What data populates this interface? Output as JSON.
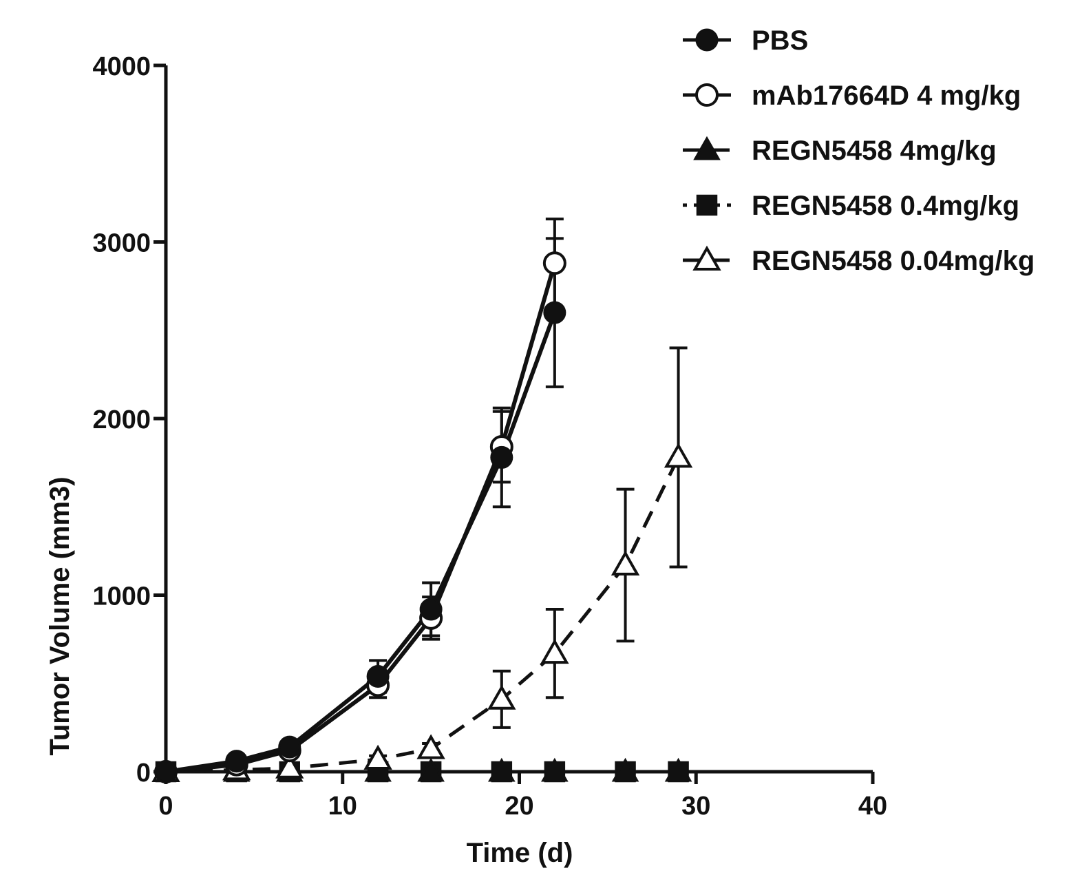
{
  "chart_data": {
    "type": "line",
    "title": "",
    "xlabel": "Time (d)",
    "ylabel": "Tumor Volume (mm3)",
    "xlim": [
      0,
      40
    ],
    "ylim": [
      0,
      4000
    ],
    "x_ticks": [
      "0",
      "10",
      "20",
      "30",
      "40"
    ],
    "y_ticks": [
      "0",
      "1000",
      "2000",
      "3000",
      "4000"
    ],
    "grid": false,
    "legend_position": "top-right",
    "series": [
      {
        "name": "PBS",
        "marker": "filled-circle",
        "line": "solid",
        "x": [
          0,
          4,
          7,
          12,
          15,
          19,
          22
        ],
        "y": [
          0,
          60,
          140,
          540,
          920,
          1780,
          2600
        ],
        "err": [
          0,
          20,
          30,
          90,
          150,
          280,
          420
        ]
      },
      {
        "name": "mAb17664D 4 mg/kg",
        "marker": "open-circle",
        "line": "solid",
        "x": [
          0,
          4,
          7,
          12,
          15,
          19,
          22
        ],
        "y": [
          0,
          40,
          120,
          490,
          870,
          1840,
          2880
        ],
        "err": [
          0,
          15,
          25,
          70,
          120,
          200,
          250
        ]
      },
      {
        "name": "REGN5458 4mg/kg",
        "marker": "filled-triangle",
        "line": "dashed",
        "x": [
          0,
          4,
          7,
          12,
          15,
          19,
          22,
          26,
          29
        ],
        "y": [
          0,
          0,
          0,
          0,
          0,
          0,
          0,
          0,
          0
        ],
        "err": [
          0,
          0,
          0,
          0,
          0,
          0,
          0,
          0,
          0
        ]
      },
      {
        "name": "REGN5458 0.4mg/kg",
        "marker": "filled-square",
        "line": "dotted",
        "x": [
          0,
          4,
          7,
          12,
          15,
          19,
          22,
          26,
          29
        ],
        "y": [
          0,
          0,
          0,
          0,
          0,
          0,
          0,
          0,
          0
        ],
        "err": [
          0,
          0,
          0,
          0,
          0,
          0,
          0,
          0,
          0
        ]
      },
      {
        "name": "REGN5458 0.04mg/kg",
        "marker": "open-triangle",
        "line": "dashed",
        "x": [
          0,
          4,
          7,
          12,
          15,
          19,
          22,
          26,
          29
        ],
        "y": [
          0,
          10,
          20,
          70,
          130,
          410,
          670,
          1170,
          1780
        ],
        "err": [
          0,
          5,
          10,
          20,
          30,
          160,
          250,
          430,
          620
        ]
      }
    ]
  }
}
